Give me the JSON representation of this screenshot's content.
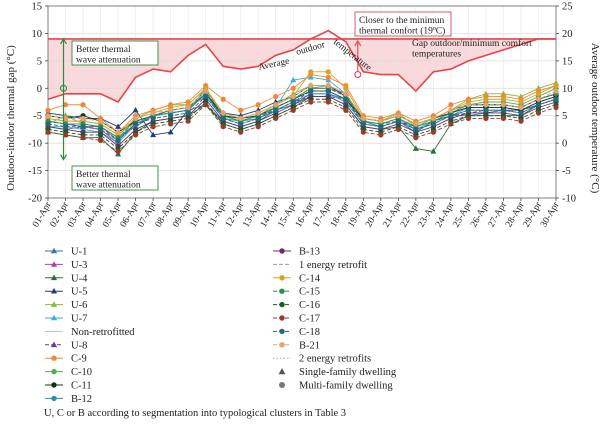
{
  "chart_data": {
    "type": "line",
    "ylabel_left": "Outdoor-indoor thermal gap (°C)",
    "ylabel_right": "Average outdoor temperature (°C)",
    "ylim_left": [
      -20,
      15
    ],
    "ylim_right": [
      -10,
      25
    ],
    "left_ticks": [
      -20,
      -15,
      -10,
      -5,
      0,
      5,
      10,
      15
    ],
    "right_ticks": [
      -10,
      -5,
      0,
      5,
      10,
      15,
      20,
      25
    ],
    "categories": [
      "01-Apr",
      "02-Apr",
      "03-Apr",
      "04-Apr",
      "05-Apr",
      "06-Apr",
      "07-Apr",
      "08-Apr",
      "09-Apr",
      "10-Apr",
      "11-Apr",
      "12-Apr",
      "13-Apr",
      "14-Apr",
      "15-Apr",
      "16-Apr",
      "17-Apr",
      "18-Apr",
      "19-Apr",
      "20-Apr",
      "21-Apr",
      "22-Apr",
      "23-Apr",
      "24-Apr",
      "25-Apr",
      "26-Apr",
      "27-Apr",
      "28-Apr",
      "29-Apr",
      "30-Apr"
    ],
    "avg_outdoor_temperature": {
      "name": "Average outdoor temperature",
      "color": "#e8424a",
      "values": [
        8,
        9,
        9,
        9,
        7.5,
        12,
        13.5,
        13,
        16,
        18,
        14,
        13.5,
        14,
        16,
        17,
        19,
        20.5,
        18.5,
        13,
        12.5,
        12.5,
        9.5,
        13,
        13.5,
        15,
        16,
        17,
        18,
        19,
        19
      ]
    },
    "min_comfort_threshold": {
      "value": 19,
      "color": "#e8424a"
    },
    "series": [
      {
        "name": "U-1",
        "marker": "triangle",
        "style": "solid",
        "color": "#3a6fb0",
        "values": [
          -7,
          -7.5,
          -7,
          -7,
          -9,
          -7,
          -5,
          -4.5,
          -4,
          -3,
          -6,
          -7,
          -6,
          -4,
          -3,
          -1,
          -1,
          -2,
          -6,
          -7,
          -6,
          -8,
          -6,
          -5,
          -5,
          -4.5,
          -4,
          -4,
          -3,
          -2
        ]
      },
      {
        "name": "U-3",
        "marker": "triangle",
        "style": "solid",
        "color": "#b13fa8",
        "values": [
          -6,
          -6.5,
          -7,
          -7.5,
          -10,
          -6.5,
          -5,
          -4,
          -3.5,
          -1,
          -5,
          -6,
          -5,
          -3.5,
          -2,
          0,
          0,
          -1,
          -6,
          -6.5,
          -5.5,
          -7,
          -6,
          -4.5,
          -3,
          -3,
          -3,
          -3.5,
          -2,
          -1
        ]
      },
      {
        "name": "U-4",
        "marker": "triangle",
        "style": "solid",
        "color": "#2f6b3a",
        "values": [
          -8,
          -8.5,
          -9,
          -9,
          -12,
          -8,
          -6,
          -5.5,
          -5,
          -3,
          -6.5,
          -7.5,
          -6.5,
          -5,
          -3.5,
          -1.5,
          -1.5,
          -3,
          -7,
          -7.5,
          -7,
          -11,
          -11.5,
          -6.5,
          -5,
          -5,
          -5,
          -5,
          -3,
          -2
        ]
      },
      {
        "name": "U-5",
        "marker": "triangle",
        "style": "solid",
        "color": "#1f3f78",
        "values": [
          -4.5,
          -5,
          -5.5,
          -5.5,
          -7,
          -4,
          -8.5,
          -8,
          -4,
          -1,
          -4.5,
          -5,
          -4,
          -2.5,
          -1.5,
          0.5,
          0.5,
          -1.5,
          -5.5,
          -6,
          -5,
          -6.5,
          -5.5,
          -4,
          -3,
          -3,
          -3,
          -3.5,
          -2,
          -1
        ]
      },
      {
        "name": "U-6",
        "marker": "triangle",
        "style": "solid",
        "color": "#8ab93b",
        "values": [
          -6.5,
          -5,
          -6.5,
          -7,
          -9.5,
          -5.5,
          -4,
          -3,
          -3,
          0,
          -5,
          -5.5,
          -5,
          -3,
          -1,
          0.5,
          0.5,
          -1,
          -5.5,
          -6,
          -4.5,
          -7,
          -5.5,
          -4,
          -2,
          -1,
          -1,
          -1.5,
          0,
          1
        ]
      },
      {
        "name": "U-7",
        "marker": "triangle",
        "style": "solid",
        "color": "#43aad8",
        "values": [
          -7,
          -7,
          -7.5,
          -8,
          -10,
          -6.5,
          -5,
          -4,
          -3.5,
          -1.5,
          -5.5,
          -6.5,
          -5.5,
          -3.5,
          1.5,
          2,
          1.5,
          -1,
          -6,
          -6.5,
          -5.5,
          -7.5,
          -6,
          -5,
          -3.5,
          -3.5,
          -3.5,
          -4,
          -2.5,
          -1.5
        ]
      },
      {
        "name": "Non-retrofitted",
        "marker": "none",
        "style": "solid",
        "color": "#9fd0c7",
        "values": null
      },
      {
        "name": "U-8",
        "marker": "triangle",
        "style": "dashed",
        "color": "#6a3c92",
        "values": [
          -6,
          -6.5,
          -7,
          -7,
          -9.5,
          -6.5,
          -5,
          -4,
          -3.5,
          -1,
          -5,
          -6,
          -5,
          -4,
          -2.5,
          -1.5,
          -1.5,
          -2,
          -6,
          -6.5,
          -6,
          -7,
          -6,
          -5,
          -4.5,
          -4,
          -4,
          -4,
          -3,
          -2
        ]
      },
      {
        "name": "C-9",
        "marker": "circle",
        "style": "solid",
        "color": "#f0883a",
        "values": [
          -4,
          -3,
          -3,
          -5.5,
          -8,
          -5,
          -4,
          -3,
          -2.5,
          0.5,
          -2,
          -4,
          -3,
          -1.5,
          0,
          2.5,
          2,
          0.5,
          -5,
          -5.5,
          -4.5,
          -6,
          -5,
          -3,
          -2,
          -1.5,
          -1.5,
          -2,
          -0.5,
          0.5
        ]
      },
      {
        "name": "C-10",
        "marker": "circle",
        "style": "solid",
        "color": "#4fb04a",
        "values": [
          -5.5,
          -6,
          -6,
          -6.5,
          -8.5,
          -6,
          -5,
          -4.5,
          -4,
          0,
          -5,
          -6,
          -5,
          -3.5,
          -2,
          0,
          0.5,
          -1,
          -6,
          -6.5,
          -5.5,
          -7,
          -6,
          -4.5,
          -3,
          -2.5,
          -2.5,
          -3,
          -1.5,
          0
        ]
      },
      {
        "name": "C-11",
        "marker": "circle",
        "style": "solid",
        "color": "#15301a",
        "values": [
          -5,
          -5.5,
          -5,
          -6,
          -8,
          -6,
          -5,
          -4.5,
          -4,
          -1,
          -5,
          -5.5,
          -5,
          -3.5,
          -2,
          -0.5,
          -0.5,
          -2,
          -5.5,
          -6,
          -5,
          -6.5,
          -5.5,
          -4.5,
          -3.5,
          -3.5,
          -3.5,
          -4,
          -2.5,
          -1.5
        ]
      },
      {
        "name": "B-12",
        "marker": "circle",
        "style": "solid",
        "color": "#2b8fb0",
        "values": [
          -6,
          -6.5,
          -6.5,
          -7,
          -9,
          -6.5,
          -5,
          -4.5,
          -4,
          -1,
          -5.5,
          -6,
          -5.5,
          -4,
          -2.5,
          -1,
          -1,
          -2.5,
          -6.5,
          -7,
          -6,
          -7.5,
          -6.5,
          -5,
          -4,
          -4,
          -4,
          -4.5,
          -3,
          -2
        ]
      },
      {
        "name": "B-13",
        "marker": "circle",
        "style": "solid",
        "color": "#6b2d6b",
        "values": [
          -7,
          -7.5,
          -8,
          -8,
          -10.5,
          -7.5,
          -6,
          -5.5,
          -5,
          -2,
          -6,
          -7,
          -6,
          -4.5,
          -3,
          -1.5,
          -1.5,
          -3,
          -7,
          -7.5,
          -6.5,
          -8,
          -7,
          -5.5,
          -4.5,
          -4.5,
          -4.5,
          -5,
          -3.5,
          -2.5
        ]
      },
      {
        "name": "1 energy retrofit",
        "marker": "none",
        "style": "dashed",
        "color": "#999999",
        "values": null
      },
      {
        "name": "C-14",
        "marker": "circle",
        "style": "solid",
        "color": "#d9a126",
        "values": [
          -5.5,
          -6,
          -6,
          -6.5,
          -8.5,
          -5.5,
          -4.5,
          -3.5,
          -3,
          0,
          -4.5,
          -5.5,
          -4.5,
          -3,
          -1.5,
          3,
          3,
          0,
          -5.5,
          -6,
          -5,
          -6.5,
          -5.5,
          -4,
          -2.5,
          -2,
          -2,
          -2.5,
          -1,
          0.5
        ]
      },
      {
        "name": "C-15",
        "marker": "circle",
        "style": "dashed",
        "color": "#2f8f48",
        "values": [
          -6,
          -6.5,
          -6.5,
          -7,
          -9,
          -6,
          -5,
          -4,
          -3.5,
          -0.5,
          -5,
          -6,
          -5,
          -3.5,
          -2,
          0,
          0,
          -1.5,
          -6,
          -6.5,
          -5.5,
          -7,
          -6,
          -4.5,
          -3,
          -3,
          -3,
          -3.5,
          -2,
          -1
        ]
      },
      {
        "name": "C-16",
        "marker": "circle",
        "style": "dashed",
        "color": "#1d5a2a",
        "values": [
          -7.5,
          -8,
          -8.5,
          -8.5,
          -11,
          -8,
          -6.5,
          -6,
          -5.5,
          -2.5,
          -6.5,
          -7.5,
          -6.5,
          -5,
          -3.5,
          -2,
          -2,
          -3.5,
          -7.5,
          -8,
          -7,
          -8.5,
          -7.5,
          -6,
          -5,
          -5,
          -5,
          -5.5,
          -4,
          -3
        ]
      },
      {
        "name": "C-17",
        "marker": "circle",
        "style": "dashed",
        "color": "#9a3a2a",
        "values": [
          -8,
          -8.5,
          -9,
          -9.5,
          -11.5,
          -8.5,
          -7,
          -6.5,
          -6,
          -3,
          -7,
          -8,
          -7,
          -5.5,
          -4,
          -2.5,
          -2.5,
          -4,
          -8,
          -8.5,
          -7.5,
          -9,
          -8,
          -6.5,
          -5.5,
          -5.5,
          -5.5,
          -6,
          -4.5,
          -3.5
        ]
      },
      {
        "name": "C-18",
        "marker": "circle",
        "style": "dashed",
        "color": "#1d6d7a",
        "values": [
          -6.5,
          -7,
          -7,
          -7.5,
          -9.5,
          -6.5,
          -5.5,
          -5,
          -4.5,
          -1.5,
          -5.5,
          -6.5,
          -5.5,
          -4,
          -2.5,
          -0.5,
          -0.5,
          -2,
          -6.5,
          -7,
          -6,
          -7.5,
          -6.5,
          -5,
          -4,
          -4,
          -4,
          -4.5,
          -3,
          -2
        ]
      },
      {
        "name": "B-21",
        "marker": "circle",
        "style": "dashed",
        "color": "#e8a070",
        "values": [
          -5,
          -5.5,
          -5.5,
          -6,
          -8,
          -5.5,
          -4.5,
          -4,
          -3.5,
          -0.5,
          -4.5,
          -5.5,
          -4.5,
          -3,
          -1.5,
          0.5,
          0.5,
          -1,
          -5.5,
          -6,
          -5,
          -6.5,
          -5.5,
          -4,
          -3,
          -3,
          -3,
          -3.5,
          -2,
          -0.5
        ]
      },
      {
        "name": "2 energy retrofits",
        "marker": "none",
        "style": "dotted",
        "color": "#aaaaaa",
        "values": null
      }
    ],
    "legend_markers": [
      {
        "name": "Single-family dwelling",
        "marker": "triangle",
        "color": "#555555"
      },
      {
        "name": "Multi-family dwelling",
        "marker": "circle",
        "color": "#777777"
      }
    ],
    "annotations": {
      "better_top": "Better thermal wave attenuation",
      "better_bottom": "Better thermal wave attenuation",
      "closer": "Closer to the minimun thermal confort (19ºC)",
      "gap": "Gap outdoor/minimum comfort temperatures",
      "avg_curve_label": "Average outdoor temperature"
    },
    "footnote": "U, C or B according to segmentation into typological clusters in Table 3"
  }
}
